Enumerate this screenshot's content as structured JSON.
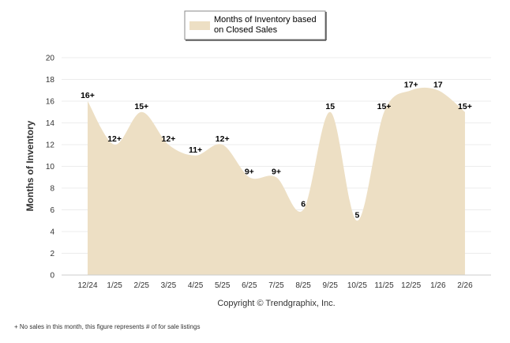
{
  "chart_data": {
    "type": "area",
    "categories": [
      "12/24",
      "1/25",
      "2/25",
      "3/25",
      "4/25",
      "5/25",
      "6/25",
      "7/25",
      "8/25",
      "9/25",
      "10/25",
      "11/25",
      "12/25",
      "1/26",
      "2/26"
    ],
    "series": [
      {
        "name": "Months of Inventory based on Closed Sales",
        "values": [
          16,
          12,
          15,
          12,
          11,
          12,
          9,
          9,
          6,
          15,
          5,
          15,
          17,
          17,
          15
        ],
        "labels": [
          "16+",
          "12+",
          "15+",
          "12+",
          "11+",
          "12+",
          "9+",
          "9+",
          "6",
          "15",
          "5",
          "15+",
          "17+",
          "17",
          "15+"
        ],
        "color": "#eddfc4"
      }
    ],
    "ylabel": "Months of Inventory",
    "ylim": [
      0,
      20
    ],
    "yticks": [
      0,
      2,
      4,
      6,
      8,
      10,
      12,
      14,
      16,
      18,
      20
    ],
    "grid": true,
    "legend_position": "top-center"
  },
  "legend": {
    "line1": "Months of Inventory based",
    "line2": "on Closed Sales"
  },
  "copyright": "Copyright © Trendgraphix, Inc.",
  "footnote": "+ No sales in this month, this figure represents # of for sale listings"
}
